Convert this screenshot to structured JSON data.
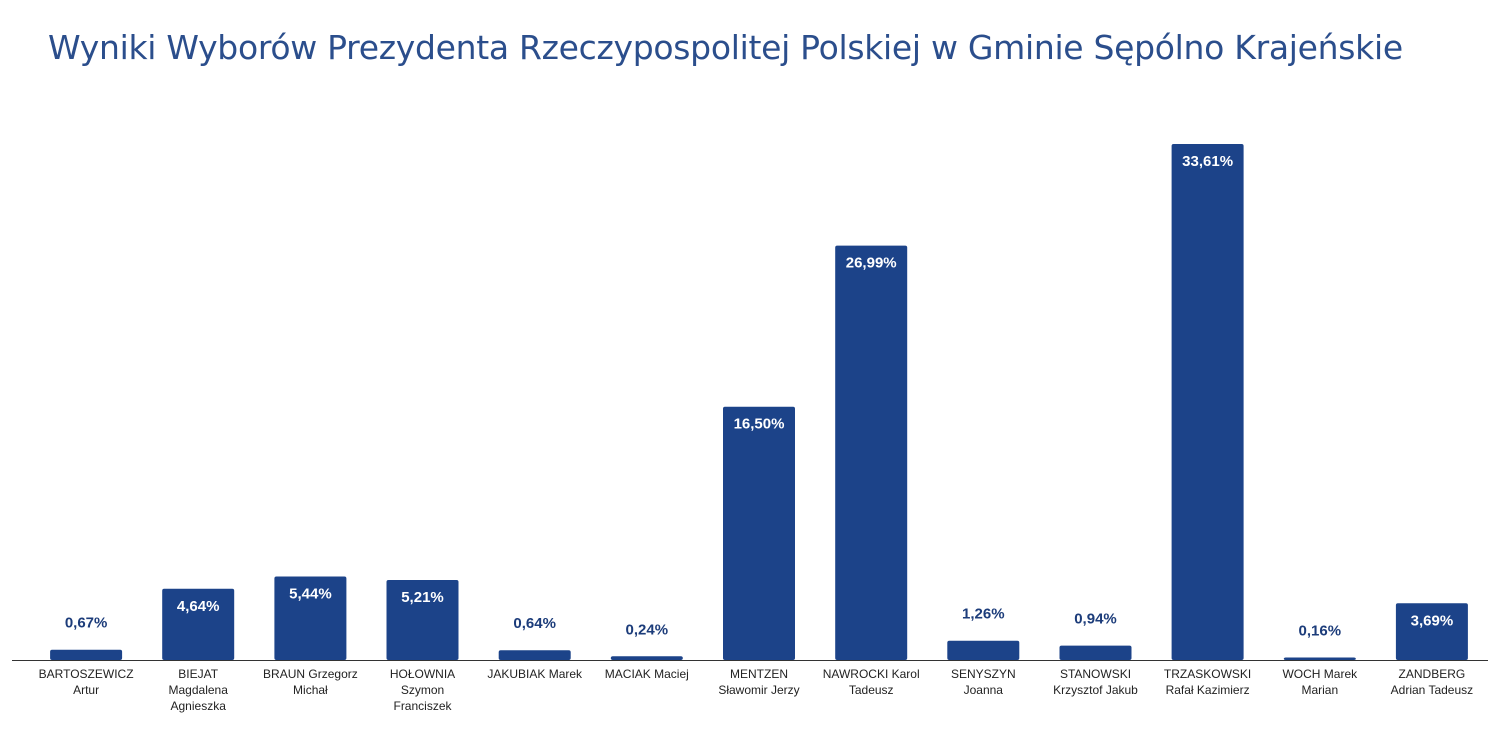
{
  "chart_data": {
    "type": "bar",
    "title": "Wyniki Wyborów Prezydenta Rzeczypospolitej Polskiej w Gminie Sępólno Krajeńskie",
    "categories": [
      [
        "BARTOSZEWICZ",
        "Artur"
      ],
      [
        "BIEJAT",
        "Magdalena",
        "Agnieszka"
      ],
      [
        "BRAUN Grzegorz",
        "Michał"
      ],
      [
        "HOŁOWNIA",
        "Szymon",
        "Franciszek"
      ],
      [
        "JAKUBIAK Marek"
      ],
      [
        "MACIAK Maciej"
      ],
      [
        "MENTZEN",
        "Sławomir Jerzy"
      ],
      [
        "NAWROCKI Karol",
        "Tadeusz"
      ],
      [
        "SENYSZYN",
        "Joanna"
      ],
      [
        "STANOWSKI",
        "Krzysztof Jakub"
      ],
      [
        "TRZASKOWSKI",
        "Rafał Kazimierz"
      ],
      [
        "WOCH Marek",
        "Marian"
      ],
      [
        "ZANDBERG",
        "Adrian Tadeusz"
      ]
    ],
    "values": [
      0.67,
      4.64,
      5.44,
      5.21,
      0.64,
      0.24,
      16.5,
      26.99,
      1.26,
      0.94,
      33.61,
      0.16,
      3.69
    ],
    "labels": [
      "0,67%",
      "4,64%",
      "5,44%",
      "5,21%",
      "0,64%",
      "0,24%",
      "16,50%",
      "26,99%",
      "1,26%",
      "0,94%",
      "33,61%",
      "0,16%",
      "3,69%"
    ],
    "xlabel": "",
    "ylabel": "",
    "ylim": [
      0,
      33.61
    ],
    "grid": false,
    "bar_color": "#1c4389",
    "label_color_inside": "#ffffff",
    "label_color_outside": "#1c3c7a"
  }
}
